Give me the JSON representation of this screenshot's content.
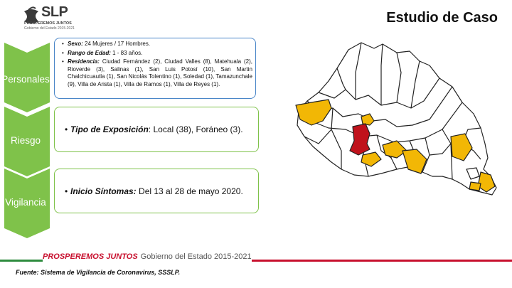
{
  "header": {
    "logo_text": "SLP",
    "logo_sub1": "PROSPEREMOS JUNTOS",
    "logo_sub2": "Gobierno del Estado 2015-2021",
    "title": "Estudio de Caso"
  },
  "sections": [
    {
      "label": "Personales",
      "items": [
        {
          "key": "Sexo:",
          "value": "  24 Mujeres / 17 Hombres."
        },
        {
          "key": "Rango de Edad:",
          "value": "  1 - 83 años."
        },
        {
          "key": "Residencia:",
          "value": " Ciudad Fernández (2), Ciudad Valles (8), Matehuala (2), Rioverde (3), Salinas (1), San Luis Potosí (10), San Martin Chalchicuautla (1), San Nicolás Tolentino (1), Soledad (1), Tamazunchale (9), Villa de Arista (1),  Villa de Ramos (1), Villa de Reyes (1)."
        }
      ]
    },
    {
      "label": "Riesgo",
      "items": [
        {
          "key": "Tipo de Exposición",
          "value": ": Local (38), Foráneo (3)."
        }
      ]
    },
    {
      "label": "Vigilancia",
      "items": [
        {
          "key": "Inicio Síntomas:",
          "value": "  Del 13 al 28 de mayo 2020."
        }
      ]
    }
  ],
  "footer": {
    "slogan": "PROSPEREMOS JUNTOS",
    "government": "Gobierno del Estado 2015-2021",
    "source": "Fuente: Sistema de Vigilancia de Coronavirus, SSSLP."
  },
  "colors": {
    "chevron_green": "#7fc24a",
    "chevron_blue": "#4a86c8",
    "map_yellow": "#f2b705",
    "map_red": "#c0121c",
    "accent_red": "#c8102e"
  }
}
